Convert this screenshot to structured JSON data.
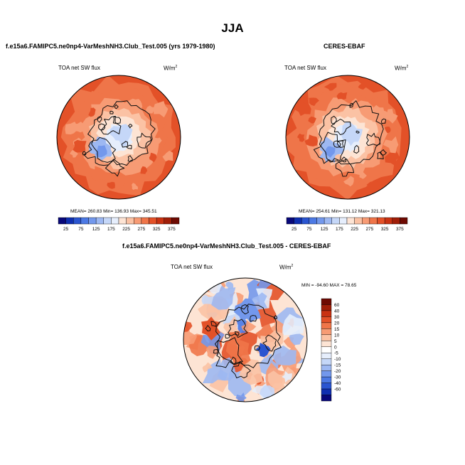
{
  "main_title": "JJA",
  "panels": [
    {
      "title": "f.e15a6.FAMIPC5.ne0np4-VarMeshNH3.Club_Test.005 (yrs 1979-1980)",
      "variable": "TOA net SW flux",
      "units": "W/m",
      "units_sup": "2",
      "stats": "MEAN= 260.83  Min= 136.93  Max= 345.51"
    },
    {
      "title": "CERES-EBAF",
      "variable": "TOA net SW flux",
      "units": "W/m",
      "units_sup": "2",
      "stats": "MEAN= 254.61  Min= 131.12  Max= 321.13"
    },
    {
      "title": "f.e15a6.FAMIPC5.ne0np4-VarMeshNH3.Club_Test.005 - CERES-EBAF",
      "variable": "TOA net SW flux",
      "units": "W/m",
      "units_sup": "2",
      "stats": "MIN = -94.60 MAX =  78.65"
    }
  ],
  "chart_data": [
    {
      "type": "heatmap",
      "projection": "north polar stereographic",
      "title": "f.e15a6.FAMIPC5.ne0np4-VarMeshNH3.Club_Test.005 (yrs 1979-1980)",
      "variable": "TOA net SW flux (W/m2)",
      "mean": 260.83,
      "min": 136.93,
      "max": 345.51,
      "colorbar_labels": [
        "25",
        "75",
        "125",
        "175",
        "225",
        "275",
        "325",
        "375"
      ],
      "colors": [
        "#08087a",
        "#0f2fb0",
        "#2a55d0",
        "#4c79e4",
        "#7398ec",
        "#9db8f2",
        "#c5d7f8",
        "#e6eefc",
        "#fde4d4",
        "#fbc2a4",
        "#f79b74",
        "#ef7549",
        "#e35128",
        "#c93212",
        "#a01e08",
        "#6e0a02"
      ]
    },
    {
      "type": "heatmap",
      "projection": "north polar stereographic",
      "title": "CERES-EBAF",
      "variable": "TOA net SW flux (W/m2)",
      "mean": 254.61,
      "min": 131.12,
      "max": 321.13,
      "colorbar_labels": [
        "25",
        "75",
        "125",
        "175",
        "225",
        "275",
        "325",
        "375"
      ],
      "colors": [
        "#08087a",
        "#0f2fb0",
        "#2a55d0",
        "#4c79e4",
        "#7398ec",
        "#9db8f2",
        "#c5d7f8",
        "#e6eefc",
        "#fde4d4",
        "#fbc2a4",
        "#f79b74",
        "#ef7549",
        "#e35128",
        "#c93212",
        "#a01e08",
        "#6e0a02"
      ]
    },
    {
      "type": "heatmap",
      "projection": "north polar stereographic",
      "title": "f.e15a6.FAMIPC5.ne0np4-VarMeshNH3.Club_Test.005 - CERES-EBAF",
      "variable": "TOA net SW flux (W/m2)",
      "min": -94.6,
      "max": 78.65,
      "colorbar_labels": [
        "60",
        "40",
        "30",
        "20",
        "15",
        "10",
        "5",
        "0",
        "-5",
        "-10",
        "-15",
        "-20",
        "-30",
        "-40",
        "-60"
      ],
      "colors": [
        "#6e0a02",
        "#a01e08",
        "#c93212",
        "#e35128",
        "#ef7549",
        "#f79b74",
        "#fbc2a4",
        "#fde4d4",
        "#ffffff",
        "#e6eefc",
        "#c5d7f8",
        "#9db8f2",
        "#7398ec",
        "#4c79e4",
        "#2a55d0",
        "#0f2fb0",
        "#08087a"
      ]
    }
  ]
}
